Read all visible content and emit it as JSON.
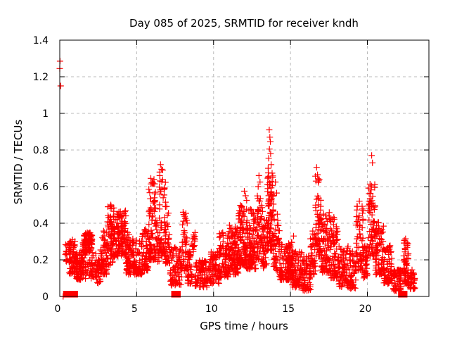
{
  "chart_data": {
    "type": "scatter",
    "title": "Day 085 of 2025, SRMTID for receiver kndh",
    "xlabel": "GPS time / hours",
    "ylabel": "SRMTID / TECUs",
    "xlim": [
      0,
      24
    ],
    "ylim": [
      0,
      1.4
    ],
    "xticks": [
      0,
      5,
      10,
      15,
      20
    ],
    "xtick_labels": [
      "0",
      "5",
      "10",
      "15",
      "20"
    ],
    "yticks": [
      0,
      0.2,
      0.4,
      0.6,
      0.8,
      1.0,
      1.2,
      1.4
    ],
    "ytick_labels": [
      "0",
      "0.2",
      "0.4",
      "0.6",
      "0.8",
      "1",
      "1.2",
      "1.4"
    ],
    "grid": true,
    "grid_style": "dashed",
    "legend": "none",
    "marker": "plus",
    "marker_color": "#ff0000",
    "grid_color": "#bbbbbb",
    "axis_color": "#000000",
    "background_color": "#ffffff",
    "outlier_points": [
      [
        0.02,
        1.285
      ],
      [
        0.0,
        1.245
      ],
      [
        0.06,
        1.15
      ]
    ],
    "peak_points": [
      [
        3.32,
        0.5
      ],
      [
        3.38,
        0.48
      ],
      [
        5.92,
        0.645
      ],
      [
        6.02,
        0.615
      ],
      [
        6.5,
        0.66
      ],
      [
        6.55,
        0.72
      ],
      [
        6.62,
        0.695
      ],
      [
        8.02,
        0.46
      ],
      [
        11.63,
        0.44
      ],
      [
        11.68,
        0.47
      ],
      [
        12.0,
        0.575
      ],
      [
        12.08,
        0.55
      ],
      [
        12.15,
        0.525
      ],
      [
        12.9,
        0.6
      ],
      [
        12.95,
        0.66
      ],
      [
        13.02,
        0.625
      ],
      [
        13.55,
        0.7
      ],
      [
        13.58,
        0.755
      ],
      [
        13.62,
        0.91
      ],
      [
        13.63,
        0.805
      ],
      [
        13.66,
        0.87
      ],
      [
        13.69,
        0.845
      ],
      [
        13.71,
        0.78
      ],
      [
        13.74,
        0.72
      ],
      [
        14.02,
        0.625
      ],
      [
        14.1,
        0.565
      ],
      [
        15.2,
        0.33
      ],
      [
        16.66,
        0.63
      ],
      [
        16.7,
        0.705
      ],
      [
        16.76,
        0.665
      ],
      [
        19.48,
        0.52
      ],
      [
        20.28,
        0.77
      ],
      [
        20.33,
        0.73
      ],
      [
        22.48,
        0.315
      ]
    ],
    "zero_value_runs": [
      [
        0.4,
        1.0
      ],
      [
        7.43,
        7.68
      ],
      [
        22.18,
        22.42
      ]
    ],
    "zero_value_points": [
      [
        0.22,
        0
      ]
    ],
    "density_bins": {
      "description": "approximate scatter density envelope: [x_start_hour, x_end_hour, n_points, y_min, y_max, y_mode]",
      "bins": [
        [
          0.35,
          0.62,
          14,
          0.19,
          0.3,
          0.25
        ],
        [
          0.6,
          1.05,
          70,
          0.12,
          0.31,
          0.21
        ],
        [
          1.05,
          1.4,
          45,
          0.09,
          0.24,
          0.14
        ],
        [
          1.4,
          1.6,
          22,
          0.1,
          0.22,
          0.15
        ],
        [
          1.5,
          2.1,
          95,
          0.24,
          0.35,
          0.29
        ],
        [
          1.65,
          2.35,
          45,
          0.09,
          0.24,
          0.16
        ],
        [
          2.35,
          2.65,
          28,
          0.07,
          0.2,
          0.12
        ],
        [
          2.65,
          3.1,
          60,
          0.12,
          0.36,
          0.21
        ],
        [
          3.1,
          3.55,
          75,
          0.17,
          0.5,
          0.31
        ],
        [
          3.55,
          4.3,
          115,
          0.22,
          0.47,
          0.33
        ],
        [
          4.3,
          4.8,
          70,
          0.12,
          0.35,
          0.21
        ],
        [
          4.8,
          5.35,
          65,
          0.12,
          0.31,
          0.18
        ],
        [
          5.35,
          5.78,
          55,
          0.14,
          0.38,
          0.23
        ],
        [
          5.78,
          6.25,
          85,
          0.2,
          0.64,
          0.35
        ],
        [
          6.25,
          6.47,
          20,
          0.18,
          0.42,
          0.28
        ],
        [
          6.47,
          6.88,
          65,
          0.22,
          0.7,
          0.38
        ],
        [
          6.88,
          7.18,
          32,
          0.18,
          0.5,
          0.28
        ],
        [
          7.18,
          7.92,
          75,
          0.06,
          0.28,
          0.14
        ],
        [
          7.92,
          8.3,
          45,
          0.14,
          0.46,
          0.25
        ],
        [
          8.3,
          8.6,
          40,
          0.07,
          0.25,
          0.14
        ],
        [
          8.55,
          8.8,
          16,
          0.24,
          0.35,
          0.29
        ],
        [
          8.8,
          9.8,
          95,
          0.05,
          0.2,
          0.12
        ],
        [
          9.8,
          10.35,
          60,
          0.07,
          0.25,
          0.14
        ],
        [
          10.35,
          11.0,
          85,
          0.1,
          0.35,
          0.19
        ],
        [
          11.0,
          11.6,
          90,
          0.12,
          0.4,
          0.23
        ],
        [
          11.6,
          12.1,
          85,
          0.17,
          0.5,
          0.3
        ],
        [
          12.1,
          12.75,
          100,
          0.15,
          0.48,
          0.27
        ],
        [
          12.75,
          13.2,
          60,
          0.18,
          0.55,
          0.33
        ],
        [
          13.2,
          13.5,
          40,
          0.15,
          0.42,
          0.25
        ],
        [
          13.5,
          13.9,
          90,
          0.25,
          0.68,
          0.4
        ],
        [
          13.9,
          14.3,
          45,
          0.14,
          0.45,
          0.24
        ],
        [
          14.3,
          15.1,
          110,
          0.09,
          0.3,
          0.16
        ],
        [
          15.1,
          15.8,
          85,
          0.05,
          0.25,
          0.13
        ],
        [
          15.8,
          16.3,
          60,
          0.03,
          0.22,
          0.11
        ],
        [
          16.3,
          16.62,
          40,
          0.12,
          0.36,
          0.22
        ],
        [
          16.62,
          16.98,
          55,
          0.22,
          0.68,
          0.35
        ],
        [
          16.98,
          17.6,
          85,
          0.13,
          0.46,
          0.24
        ],
        [
          17.6,
          18.1,
          70,
          0.1,
          0.44,
          0.21
        ],
        [
          18.1,
          18.75,
          70,
          0.05,
          0.28,
          0.14
        ],
        [
          18.75,
          19.25,
          50,
          0.04,
          0.25,
          0.12
        ],
        [
          19.25,
          19.75,
          60,
          0.14,
          0.5,
          0.28
        ],
        [
          19.75,
          20.05,
          30,
          0.1,
          0.3,
          0.17
        ],
        [
          20.05,
          20.52,
          75,
          0.22,
          0.63,
          0.36
        ],
        [
          20.52,
          21.05,
          80,
          0.12,
          0.42,
          0.22
        ],
        [
          21.05,
          21.6,
          65,
          0.07,
          0.28,
          0.14
        ],
        [
          21.6,
          22.2,
          60,
          0.03,
          0.15,
          0.08
        ],
        [
          22.35,
          22.68,
          55,
          0.07,
          0.31,
          0.15
        ],
        [
          22.68,
          23.1,
          40,
          0.04,
          0.15,
          0.08
        ]
      ]
    },
    "seed": 2025085
  }
}
